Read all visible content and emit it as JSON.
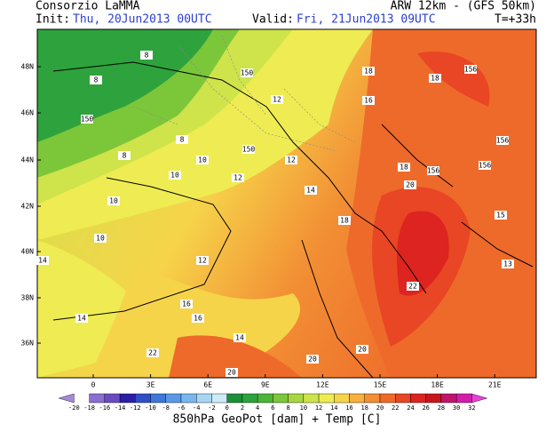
{
  "header": {
    "title": "Consorzio LaMMA",
    "model": "ARW 12km  - (GFS 50km)",
    "init_label": "Init:",
    "init": "Thu, 20Jun2013 00UTC",
    "valid_label": "Valid:",
    "valid": "Fri, 21Jun2013 09UTC",
    "lead": "T=+33h"
  },
  "latitudes": [
    "48N",
    "46N",
    "44N",
    "42N",
    "40N",
    "38N",
    "36N"
  ],
  "longitudes": [
    "0",
    "3E",
    "6E",
    "9E",
    "12E",
    "15E",
    "18E",
    "21E"
  ],
  "map_labels": [
    "8",
    "8",
    "150",
    "150",
    "8",
    "8",
    "10",
    "10",
    "10",
    "12",
    "12",
    "12",
    "14",
    "14",
    "14",
    "16",
    "18",
    "18",
    "20",
    "20",
    "20",
    "22",
    "14",
    "16",
    "18",
    "20",
    "156",
    "156",
    "156",
    "156",
    "13",
    "15",
    "12",
    "10",
    "150",
    "16",
    "18",
    "22"
  ],
  "colorbar": {
    "values": [
      -20,
      -18,
      -16,
      -14,
      -12,
      -10,
      -8,
      -6,
      -4,
      -2,
      0,
      2,
      4,
      6,
      8,
      10,
      12,
      14,
      16,
      18,
      20,
      22,
      24,
      26,
      28,
      30,
      32
    ],
    "colors": [
      "#a58ad8",
      "#8b6fd0",
      "#6a4cc0",
      "#2b1ea8",
      "#2e4fc6",
      "#3e78d8",
      "#5a98e6",
      "#79b6ef",
      "#a6d6f4",
      "#cdebf6",
      "#1d8f3a",
      "#2ea23c",
      "#4cb43a",
      "#7cc63a",
      "#a8d640",
      "#cfe34a",
      "#eeec52",
      "#f6d44a",
      "#f5b040",
      "#f28e34",
      "#ee6a2a",
      "#e84624",
      "#dd2420",
      "#c8161e",
      "#c0146a",
      "#d21ea8",
      "#e840d8"
    ]
  },
  "footer": "850hPa GeoPot [dam] + Temp [C]"
}
